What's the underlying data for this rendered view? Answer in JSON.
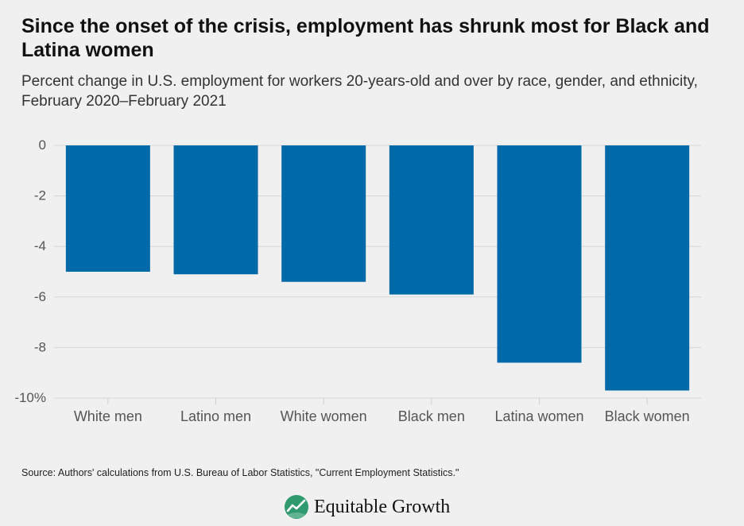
{
  "chart_data": {
    "type": "bar",
    "title": "Since the onset of the crisis, employment has shrunk most for Black and Latina women",
    "subtitle": "Percent change in U.S. employment for workers 20-years-old and over by race, gender, and ethnicity, February 2020–February 2021",
    "categories": [
      "White men",
      "Latino men",
      "White women",
      "Black men",
      "Latina women",
      "Black women"
    ],
    "values": [
      -5.0,
      -5.1,
      -5.4,
      -5.9,
      -8.6,
      -9.7
    ],
    "ylim": [
      -10,
      0
    ],
    "yticks": [
      0,
      -2,
      -4,
      -6,
      -8,
      -10
    ],
    "ytick_labels": [
      "0",
      "-2",
      "-4",
      "-6",
      "-8",
      "-10%"
    ],
    "xlabel": "",
    "ylabel": "",
    "grid": true,
    "bar_color": "#0069a8"
  },
  "source": "Source: Authors' calculations from U.S. Bureau of Labor Statistics, \"Current Employment Statistics.\"",
  "logo": {
    "text": "Equitable Growth",
    "icon": "equitable-growth-logo-icon",
    "icon_color": "#2e9a6e"
  }
}
